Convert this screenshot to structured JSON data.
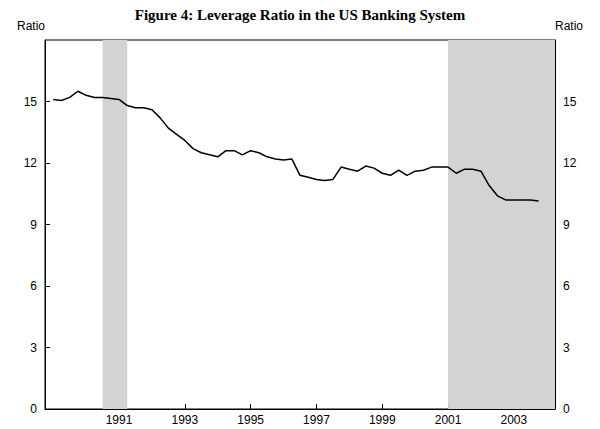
{
  "chart_data": {
    "type": "line",
    "title": "Figure 4: Leverage Ratio in the US Banking System",
    "y_axis_label": "Ratio",
    "color": "#000000",
    "grid": false,
    "x": [
      1989.0,
      1989.25,
      1989.5,
      1989.75,
      1990.0,
      1990.25,
      1990.5,
      1990.75,
      1991.0,
      1991.25,
      1991.5,
      1991.75,
      1992.0,
      1992.25,
      1992.5,
      1992.75,
      1993.0,
      1993.25,
      1993.5,
      1993.75,
      1994.0,
      1994.25,
      1994.5,
      1994.75,
      1995.0,
      1995.25,
      1995.5,
      1995.75,
      1996.0,
      1996.25,
      1996.5,
      1996.75,
      1997.0,
      1997.25,
      1997.5,
      1997.75,
      1998.0,
      1998.25,
      1998.5,
      1998.75,
      1999.0,
      1999.25,
      1999.5,
      1999.75,
      2000.0,
      2000.25,
      2000.5,
      2000.75,
      2001.0,
      2001.25,
      2001.5,
      2001.75,
      2002.0,
      2002.25,
      2002.5,
      2002.75,
      2003.0,
      2003.25,
      2003.5,
      2003.75
    ],
    "values": [
      15.1,
      15.05,
      15.2,
      15.5,
      15.3,
      15.2,
      15.2,
      15.15,
      15.1,
      14.8,
      14.7,
      14.7,
      14.6,
      14.2,
      13.7,
      13.4,
      13.1,
      12.7,
      12.5,
      12.4,
      12.3,
      12.6,
      12.6,
      12.4,
      12.6,
      12.5,
      12.3,
      12.2,
      12.15,
      12.2,
      11.4,
      11.3,
      11.2,
      11.15,
      11.2,
      11.8,
      11.7,
      11.6,
      11.85,
      11.75,
      11.5,
      11.4,
      11.65,
      11.4,
      11.6,
      11.65,
      11.8,
      11.8,
      11.8,
      11.5,
      11.7,
      11.7,
      11.6,
      10.9,
      10.4,
      10.2,
      10.2,
      10.2,
      10.2,
      10.15
    ],
    "shaded_ranges": [
      [
        1990.5,
        1991.25
      ],
      [
        2001.0,
        2004.25
      ]
    ],
    "shade_color": "#d3d3d3",
    "xlim": [
      1988.75,
      2004.25
    ],
    "xticks": [
      1991,
      1993,
      1995,
      1997,
      1999,
      2001,
      2003
    ],
    "ylim": [
      0,
      18
    ],
    "yticks": [
      0,
      3,
      6,
      9,
      12,
      15
    ]
  }
}
